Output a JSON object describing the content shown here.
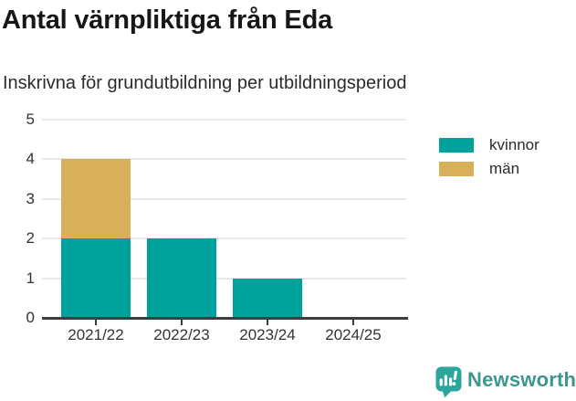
{
  "title": "Antal värnpliktiga från Eda",
  "subtitle": "Inskrivna för grundutbildning per utbildningsperiod",
  "chart_data": {
    "type": "bar",
    "stacked": true,
    "title": "Antal värnpliktiga från Eda",
    "subtitle": "Inskrivna för grundutbildning per utbildningsperiod",
    "categories": [
      "2021/22",
      "2022/23",
      "2023/24",
      "2024/25"
    ],
    "series": [
      {
        "name": "kvinnor",
        "color": "#00a39b",
        "values": [
          2,
          2,
          1,
          0
        ]
      },
      {
        "name": "män",
        "color": "#d8b05a",
        "values": [
          2,
          0,
          0,
          0
        ]
      }
    ],
    "xlabel": "",
    "ylabel": "",
    "ylim": [
      0,
      5
    ],
    "yticks": [
      0,
      1,
      2,
      3,
      4,
      5
    ],
    "grid": true,
    "legend_position": "top-right"
  },
  "legend": {
    "items": [
      {
        "label": "kvinnor",
        "color": "#00a39b"
      },
      {
        "label": "män",
        "color": "#d8b05a"
      }
    ]
  },
  "branding": {
    "logo_text": "Newsworthy",
    "logo_text_color": "#3f968f",
    "logo_icon": "bar-chart-speech-bubble-icon",
    "logo_icon_color": "#2aa69c"
  },
  "style_colors": {
    "axis": "#3d3d3d",
    "gridline": "#e8e8e8",
    "tick_label": "#333333"
  }
}
